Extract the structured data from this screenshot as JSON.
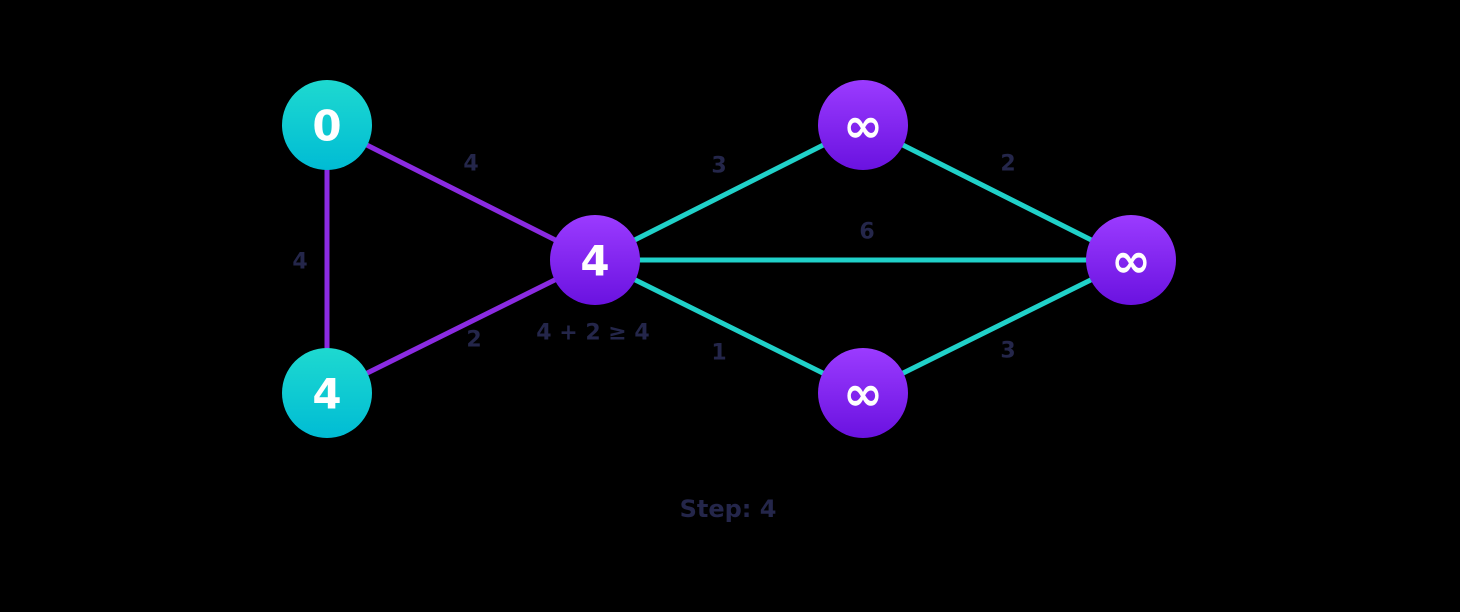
{
  "colors": {
    "background": "#000000",
    "visited_node_top": "#1ed9d0",
    "visited_node_bottom": "#00bcd4",
    "unvisited_node_top": "#9b3bff",
    "unvisited_node_bottom": "#6a12e0",
    "visited_edge": "#8b2be2",
    "unvisited_edge": "#20d1c9",
    "label": "#24264a"
  },
  "nodes": [
    {
      "id": "a",
      "value": "0",
      "state": "visited"
    },
    {
      "id": "b",
      "value": "4",
      "state": "visited"
    },
    {
      "id": "c",
      "value": "4",
      "state": "current"
    },
    {
      "id": "d",
      "value": "∞",
      "state": "unvisited"
    },
    {
      "id": "e",
      "value": "∞",
      "state": "unvisited"
    },
    {
      "id": "f",
      "value": "∞",
      "state": "unvisited"
    }
  ],
  "edges": [
    {
      "from": "a",
      "to": "b",
      "weight": "4",
      "state": "visited"
    },
    {
      "from": "a",
      "to": "c",
      "weight": "4",
      "state": "visited"
    },
    {
      "from": "b",
      "to": "c",
      "weight": "2",
      "state": "visited"
    },
    {
      "from": "c",
      "to": "d",
      "weight": "3",
      "state": "unvisited"
    },
    {
      "from": "c",
      "to": "f",
      "weight": "6",
      "state": "unvisited"
    },
    {
      "from": "c",
      "to": "e",
      "weight": "1",
      "state": "unvisited"
    },
    {
      "from": "d",
      "to": "f",
      "weight": "2",
      "state": "unvisited"
    },
    {
      "from": "e",
      "to": "f",
      "weight": "3",
      "state": "unvisited"
    }
  ],
  "annotation": "4 + 2 ≥ 4",
  "caption": "Step: 4"
}
